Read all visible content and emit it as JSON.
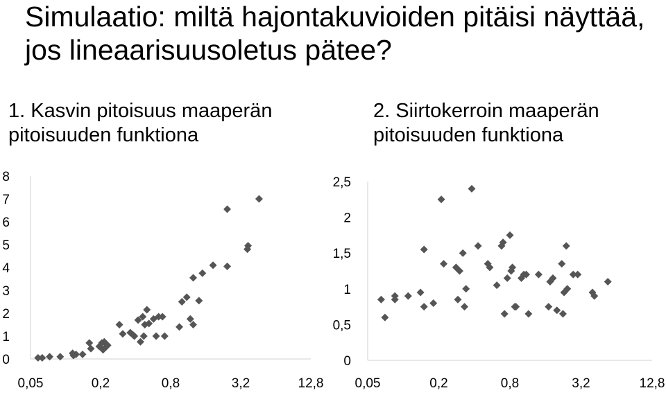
{
  "title": "Simulaatio: miltä hajontakuvioiden pitäisi näyttää, jos lineaarisuusoletus pätee?",
  "colors": {
    "marker": "#555555",
    "axis": "#d0d0d0",
    "text": "#000000"
  },
  "chart_data": [
    {
      "type": "scatter",
      "title": "1. Kasvin pitoisuus maaperän pitoisuuden funktiona",
      "x_scale": "log2",
      "xlim": [
        0.05,
        12.8
      ],
      "ylim": [
        0,
        8
      ],
      "x_tick_labels": [
        "0,05",
        "0,2",
        "0,8",
        "3,2",
        "12,8"
      ],
      "y_tick_labels": [
        "0",
        "1",
        "2",
        "3",
        "4",
        "5",
        "6",
        "7",
        "8"
      ],
      "marker": "diamond",
      "points": [
        [
          0.058,
          0.05
        ],
        [
          0.063,
          0.05
        ],
        [
          0.073,
          0.1
        ],
        [
          0.09,
          0.1
        ],
        [
          0.115,
          0.25
        ],
        [
          0.117,
          0.15
        ],
        [
          0.123,
          0.2
        ],
        [
          0.14,
          0.2
        ],
        [
          0.16,
          0.7
        ],
        [
          0.165,
          0.45
        ],
        [
          0.195,
          0.55
        ],
        [
          0.205,
          0.7
        ],
        [
          0.21,
          0.4
        ],
        [
          0.22,
          0.5
        ],
        [
          0.215,
          0.75
        ],
        [
          0.23,
          0.6
        ],
        [
          0.29,
          1.5
        ],
        [
          0.31,
          1.1
        ],
        [
          0.36,
          1.15
        ],
        [
          0.38,
          1.05
        ],
        [
          0.39,
          1.0
        ],
        [
          0.42,
          1.7
        ],
        [
          0.44,
          0.75
        ],
        [
          0.46,
          1.85
        ],
        [
          0.47,
          1.0
        ],
        [
          0.48,
          1.5
        ],
        [
          0.5,
          2.15
        ],
        [
          0.52,
          1.55
        ],
        [
          0.57,
          1.75
        ],
        [
          0.6,
          1.0
        ],
        [
          0.63,
          1.85
        ],
        [
          0.68,
          1.85
        ],
        [
          0.71,
          1.0
        ],
        [
          0.95,
          1.4
        ],
        [
          1.0,
          2.5
        ],
        [
          1.1,
          2.7
        ],
        [
          1.18,
          1.75
        ],
        [
          1.25,
          1.5
        ],
        [
          1.25,
          3.55
        ],
        [
          1.4,
          2.55
        ],
        [
          1.5,
          3.75
        ],
        [
          1.85,
          4.1
        ],
        [
          2.45,
          4.05
        ],
        [
          2.45,
          6.55
        ],
        [
          3.65,
          4.8
        ],
        [
          3.7,
          4.95
        ],
        [
          4.6,
          7.0
        ]
      ]
    },
    {
      "type": "scatter",
      "title": "2. Siirtokerroin maaperän pitoisuuden funktiona",
      "x_scale": "log2",
      "xlim": [
        0.05,
        12.8
      ],
      "ylim": [
        0,
        2.5
      ],
      "x_tick_labels": [
        "0,05",
        "0,2",
        "0,8",
        "3,2",
        "12,8"
      ],
      "y_tick_labels": [
        "0",
        "0,5",
        "1",
        "1,5",
        "2",
        "2,5"
      ],
      "marker": "diamond",
      "points": [
        [
          0.065,
          0.85
        ],
        [
          0.07,
          0.6
        ],
        [
          0.085,
          0.85
        ],
        [
          0.085,
          0.9
        ],
        [
          0.11,
          0.9
        ],
        [
          0.14,
          0.95
        ],
        [
          0.15,
          0.75
        ],
        [
          0.15,
          1.55
        ],
        [
          0.18,
          0.8
        ],
        [
          0.21,
          2.25
        ],
        [
          0.22,
          1.35
        ],
        [
          0.28,
          1.3
        ],
        [
          0.29,
          0.85
        ],
        [
          0.3,
          1.25
        ],
        [
          0.32,
          1.5
        ],
        [
          0.33,
          0.75
        ],
        [
          0.34,
          1.0
        ],
        [
          0.38,
          2.4
        ],
        [
          0.43,
          1.6
        ],
        [
          0.52,
          1.35
        ],
        [
          0.54,
          1.3
        ],
        [
          0.62,
          1.05
        ],
        [
          0.68,
          1.6
        ],
        [
          0.7,
          1.65
        ],
        [
          0.72,
          0.65
        ],
        [
          0.76,
          1.15
        ],
        [
          0.8,
          1.75
        ],
        [
          0.82,
          1.25
        ],
        [
          0.84,
          1.3
        ],
        [
          0.88,
          0.75
        ],
        [
          0.9,
          0.75
        ],
        [
          1.0,
          1.15
        ],
        [
          1.05,
          1.2
        ],
        [
          1.1,
          1.2
        ],
        [
          1.15,
          0.65
        ],
        [
          1.4,
          1.2
        ],
        [
          1.7,
          0.75
        ],
        [
          1.75,
          1.1
        ],
        [
          1.85,
          1.15
        ],
        [
          2.0,
          0.7
        ],
        [
          2.2,
          1.35
        ],
        [
          2.25,
          0.65
        ],
        [
          2.3,
          0.95
        ],
        [
          2.4,
          1.6
        ],
        [
          2.45,
          1.0
        ],
        [
          2.75,
          1.2
        ],
        [
          3.0,
          1.2
        ],
        [
          4.0,
          0.95
        ],
        [
          4.15,
          0.9
        ],
        [
          5.4,
          1.1
        ]
      ]
    }
  ]
}
